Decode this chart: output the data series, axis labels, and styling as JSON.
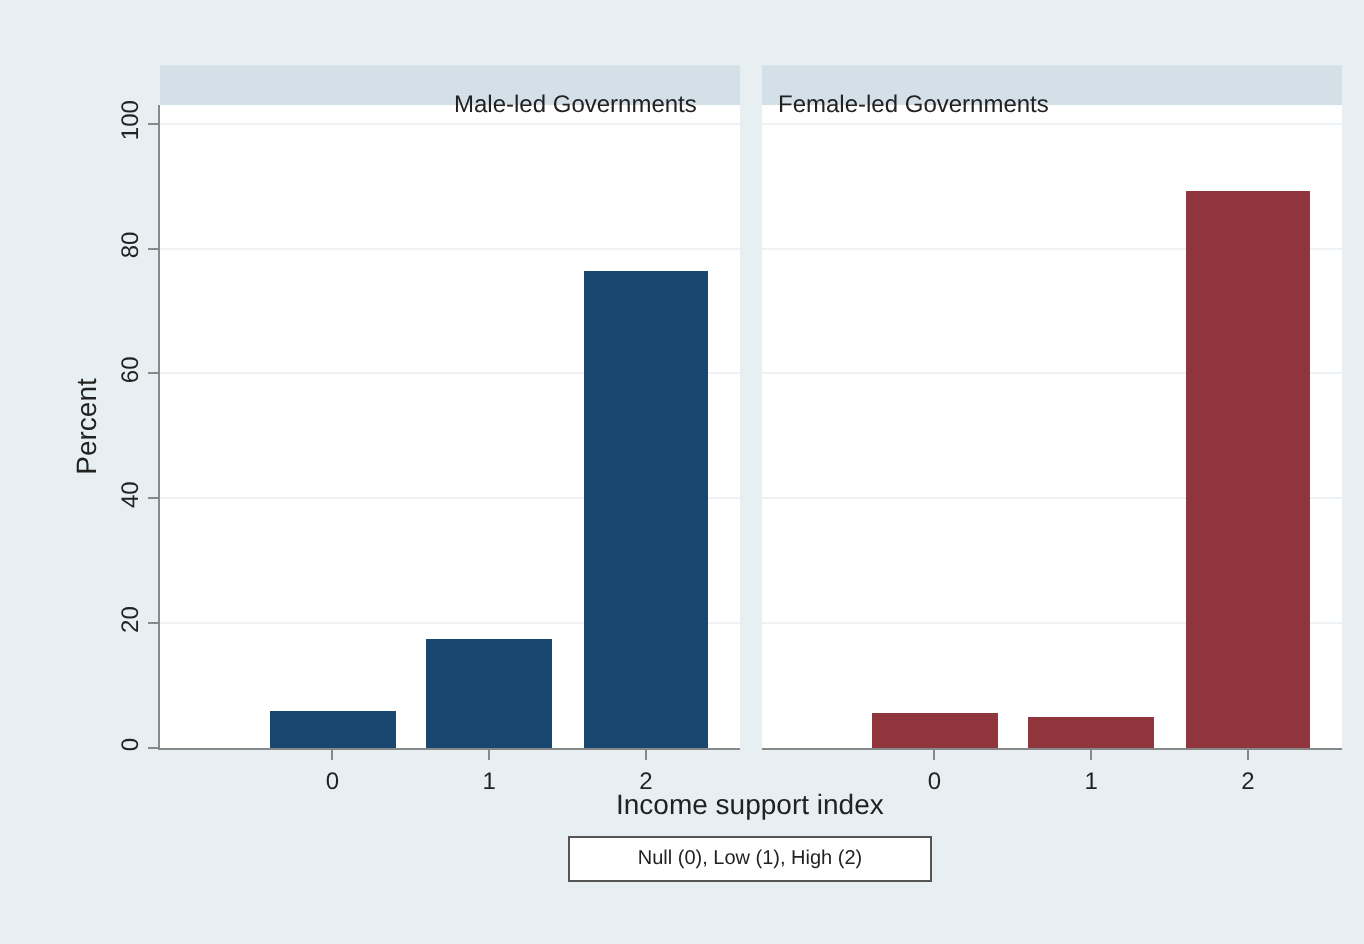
{
  "chart_data": [
    {
      "type": "bar",
      "title": "Male-led Governments",
      "xlabel": "Income support index",
      "ylabel": "Percent",
      "x": [
        0,
        1,
        2
      ],
      "values": [
        6.0,
        17.4,
        76.5
      ],
      "color": "#1a476f",
      "xlim": [
        -1.1,
        2.6
      ],
      "xticks": [
        0,
        1,
        2
      ],
      "ylim": [
        0,
        103
      ],
      "yticks": [
        0,
        20,
        40,
        60,
        80,
        100
      ],
      "grid": "y",
      "annotations": [
        "Null (0), Low (1), High (2)"
      ]
    },
    {
      "type": "bar",
      "title": "Female-led Governments",
      "x": [
        0,
        1,
        2
      ],
      "values": [
        5.7,
        5.0,
        89.1
      ],
      "color": "#90353b",
      "xlim": [
        -1.1,
        2.6
      ],
      "xticks": [
        0,
        1,
        2
      ],
      "ylim": [
        0,
        103
      ],
      "yticks": [
        0,
        20,
        40,
        60,
        80,
        100
      ],
      "grid": "y",
      "tick_labels": "x"
    }
  ]
}
